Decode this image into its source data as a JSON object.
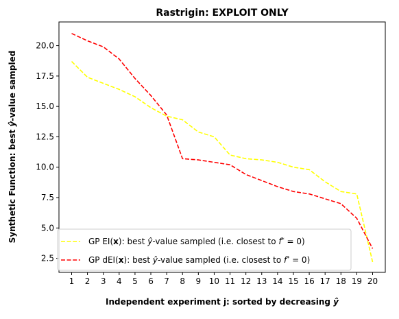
{
  "chart_data": {
    "type": "line",
    "title": "Rastrigin: EXPLOIT ONLY",
    "xlabel": "Independent experiment j: sorted by decreasing ŷ",
    "ylabel": "Synthetic Function: best ŷ-value sampled",
    "xlim": [
      0.2,
      20.8
    ],
    "ylim": [
      1.35,
      21.95
    ],
    "grid": false,
    "legend_position": "lower-left",
    "x": [
      1,
      2,
      3,
      4,
      5,
      6,
      7,
      8,
      9,
      10,
      11,
      12,
      13,
      14,
      15,
      16,
      17,
      18,
      19,
      20
    ],
    "xticks": [
      "1",
      "2",
      "3",
      "4",
      "5",
      "6",
      "7",
      "8",
      "9",
      "10",
      "11",
      "12",
      "13",
      "14",
      "15",
      "16",
      "17",
      "18",
      "19",
      "20"
    ],
    "yticks": [
      "2.5",
      "5.0",
      "7.5",
      "10.0",
      "12.5",
      "15.0",
      "17.5",
      "20.0"
    ],
    "ytick_values": [
      2.5,
      5.0,
      7.5,
      10.0,
      12.5,
      15.0,
      17.5,
      20.0
    ],
    "series": [
      {
        "name": "GP EI(x):   best ŷ-value sampled (i.e. closest to f* = 0)",
        "color": "#ffff00",
        "linestyle": "dashed",
        "values": [
          18.7,
          17.4,
          16.9,
          16.4,
          15.8,
          14.9,
          14.2,
          13.9,
          12.9,
          12.5,
          11.0,
          10.7,
          10.6,
          10.4,
          10.0,
          9.8,
          8.8,
          8.0,
          7.8,
          2.2
        ]
      },
      {
        "name": "GP dEI(x): best ŷ-value sampled (i.e. closest to f* = 0)",
        "color": "#ff0000",
        "linestyle": "dashed",
        "values": [
          21.0,
          20.4,
          19.9,
          18.9,
          17.3,
          15.9,
          14.3,
          10.7,
          10.6,
          10.4,
          10.2,
          9.4,
          8.9,
          8.4,
          8.0,
          7.8,
          7.4,
          7.0,
          5.8,
          3.3
        ]
      }
    ]
  }
}
